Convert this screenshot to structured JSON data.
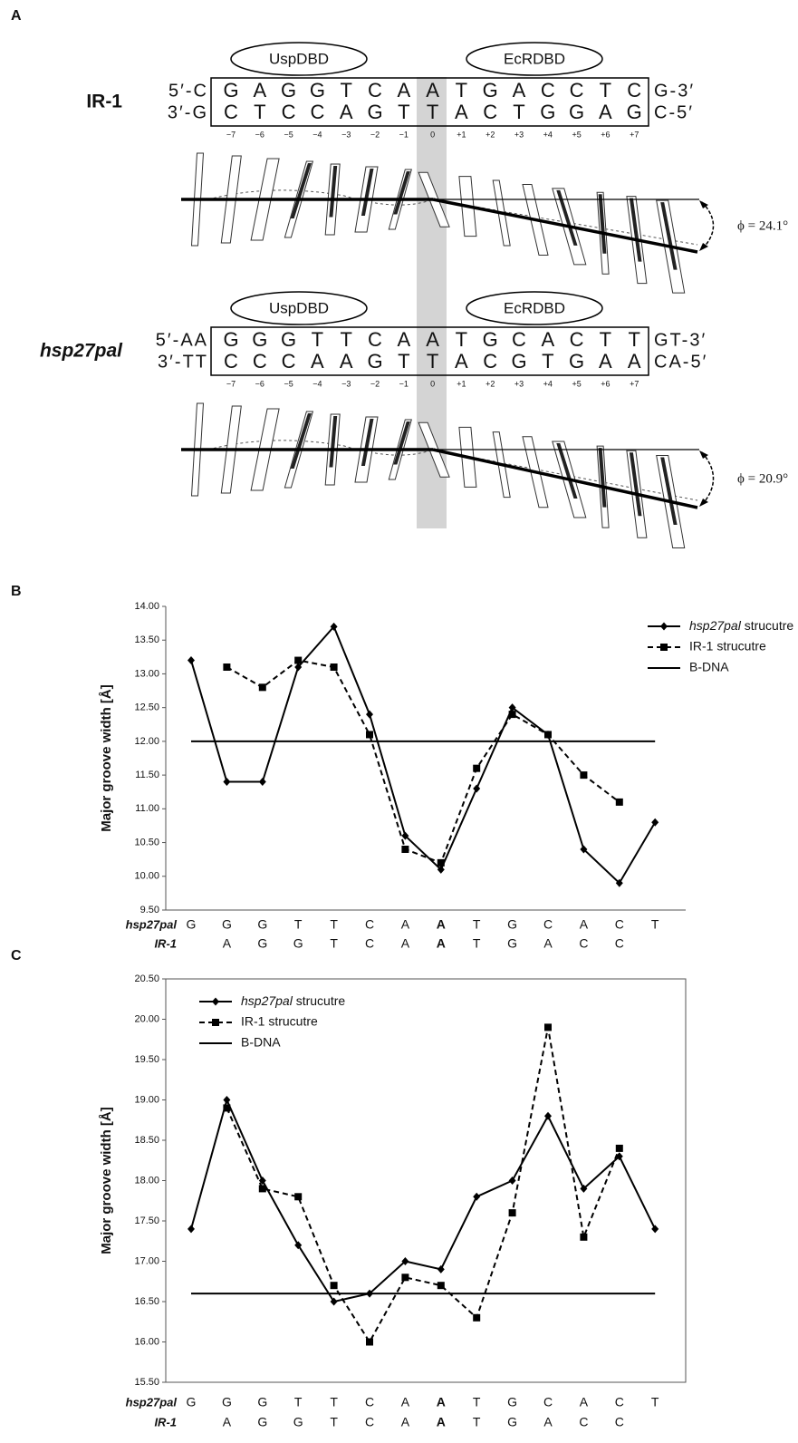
{
  "panel_a": {
    "label": "A",
    "complexes": [
      {
        "name": "IR-1",
        "domains": [
          "UspDBD",
          "EcRDBD"
        ],
        "top": {
          "left": "5′-C",
          "bases": [
            "G",
            "A",
            "G",
            "G",
            "T",
            "C",
            "A",
            "A",
            "T",
            "G",
            "A",
            "C",
            "C",
            "T",
            "C"
          ],
          "right": "G-3′"
        },
        "bottom": {
          "left": "3′-G",
          "bases": [
            "C",
            "T",
            "C",
            "C",
            "A",
            "G",
            "T",
            "T",
            "A",
            "C",
            "T",
            "G",
            "G",
            "A",
            "G"
          ],
          "right": "C-5′"
        },
        "positions": [
          "−7",
          "−6",
          "−5",
          "−4",
          "−3",
          "−2",
          "−1",
          "0",
          "+1",
          "+2",
          "+3",
          "+4",
          "+5",
          "+6",
          "+7"
        ],
        "bend": "ϕ = 24.1°"
      },
      {
        "name": "hsp27pal",
        "domains": [
          "UspDBD",
          "EcRDBD"
        ],
        "top": {
          "left": "5′-AA",
          "bases": [
            "G",
            "G",
            "G",
            "T",
            "T",
            "C",
            "A",
            "A",
            "T",
            "G",
            "C",
            "A",
            "C",
            "T",
            "T"
          ],
          "right": "GT-3′"
        },
        "bottom": {
          "left": "3′-TT",
          "bases": [
            "C",
            "C",
            "C",
            "A",
            "A",
            "G",
            "T",
            "T",
            "A",
            "C",
            "G",
            "T",
            "G",
            "A",
            "A"
          ],
          "right": "CA-5′"
        },
        "positions": [
          "−7",
          "−6",
          "−5",
          "−4",
          "−3",
          "−2",
          "−1",
          "0",
          "+1",
          "+2",
          "+3",
          "+4",
          "+5",
          "+6",
          "+7"
        ],
        "bend": "ϕ = 20.9°"
      }
    ]
  },
  "chart_data": [
    {
      "type": "line",
      "panel": "B",
      "ylabel": "Major groove width [Å]",
      "categories": [
        "G",
        "G",
        "G",
        "T",
        "T",
        "C",
        "A",
        "A",
        "T",
        "G",
        "C",
        "A",
        "C",
        "T"
      ],
      "categories_ir1": [
        null,
        "A",
        "G",
        "G",
        "T",
        "C",
        "A",
        "A",
        "T",
        "G",
        "A",
        "C",
        "C",
        null
      ],
      "category_row_labels": [
        "hsp27pal",
        "IR-1"
      ],
      "emphasis_index": 7,
      "frame": false,
      "legend": "upper right",
      "ylim": [
        9.5,
        14
      ],
      "yticks": [
        {
          "value": 9.5,
          "label": "9.50"
        },
        {
          "value": 10,
          "label": "10.00"
        },
        {
          "value": 10.5,
          "label": "10.50"
        },
        {
          "value": 11,
          "label": "11.00"
        },
        {
          "value": 11.5,
          "label": "11.50"
        },
        {
          "value": 12,
          "label": "12.00"
        },
        {
          "value": 12.5,
          "label": "12.50"
        },
        {
          "value": 13,
          "label": "13.00"
        },
        {
          "value": 13.5,
          "label": "13.50"
        },
        {
          "value": 14,
          "label": "14.00"
        }
      ],
      "series": [
        {
          "name": "hsp27pal strucutre",
          "color": "#000000",
          "dash": "solid",
          "marker": "diamond",
          "values": [
            13.2,
            11.4,
            11.4,
            13.1,
            13.7,
            12.4,
            10.6,
            10.1,
            11.3,
            12.5,
            12.1,
            10.4,
            9.9,
            10.8
          ]
        },
        {
          "name": "IR-1 strucutre",
          "color": "#000000",
          "dash": "dashed",
          "marker": "square",
          "values": [
            null,
            13.1,
            12.8,
            13.2,
            13.1,
            12.1,
            10.4,
            10.2,
            11.6,
            12.4,
            12.1,
            11.5,
            11.1,
            null
          ]
        },
        {
          "name": "B-DNA",
          "color": "#000000",
          "dash": "solid",
          "marker": "none",
          "values": [
            12,
            12,
            12,
            12,
            12,
            12,
            12,
            12,
            12,
            12,
            12,
            12,
            12,
            12
          ]
        }
      ]
    },
    {
      "type": "line",
      "panel": "C",
      "ylabel": "Major groove width [Å]",
      "categories": [
        "G",
        "G",
        "G",
        "T",
        "T",
        "C",
        "A",
        "A",
        "T",
        "G",
        "C",
        "A",
        "C",
        "T"
      ],
      "categories_ir1": [
        null,
        "A",
        "G",
        "G",
        "T",
        "C",
        "A",
        "A",
        "T",
        "G",
        "A",
        "C",
        "C",
        null
      ],
      "category_row_labels": [
        "hsp27pal",
        "IR-1"
      ],
      "emphasis_index": 7,
      "frame": true,
      "legend": "upper left",
      "ylim": [
        15.5,
        20.5
      ],
      "yticks": [
        {
          "value": 15.5,
          "label": "15.50"
        },
        {
          "value": 16,
          "label": "16.00"
        },
        {
          "value": 16.5,
          "label": "16.50"
        },
        {
          "value": 17,
          "label": "17.00"
        },
        {
          "value": 17.5,
          "label": "17.50"
        },
        {
          "value": 18,
          "label": "18.00"
        },
        {
          "value": 18.5,
          "label": "18.50"
        },
        {
          "value": 19,
          "label": "19.00"
        },
        {
          "value": 19.5,
          "label": "19.50"
        },
        {
          "value": 20,
          "label": "20.00"
        },
        {
          "value": 20.5,
          "label": "20.50"
        }
      ],
      "series": [
        {
          "name": "hsp27pal strucutre",
          "color": "#000000",
          "dash": "solid",
          "marker": "diamond",
          "values": [
            17.4,
            19.0,
            18.0,
            17.2,
            16.5,
            16.6,
            17.0,
            16.9,
            17.8,
            18.0,
            18.8,
            17.9,
            18.3,
            17.4
          ]
        },
        {
          "name": "IR-1 strucutre",
          "color": "#000000",
          "dash": "dashed",
          "marker": "square",
          "values": [
            null,
            18.9,
            17.9,
            17.8,
            16.7,
            16.0,
            16.8,
            16.7,
            16.3,
            17.6,
            19.9,
            17.3,
            18.4,
            null
          ]
        },
        {
          "name": "B-DNA",
          "color": "#000000",
          "dash": "solid",
          "marker": "none",
          "values": [
            16.6,
            16.6,
            16.6,
            16.6,
            16.6,
            16.6,
            16.6,
            16.6,
            16.6,
            16.6,
            16.6,
            16.6,
            16.6,
            16.6
          ]
        }
      ]
    }
  ]
}
